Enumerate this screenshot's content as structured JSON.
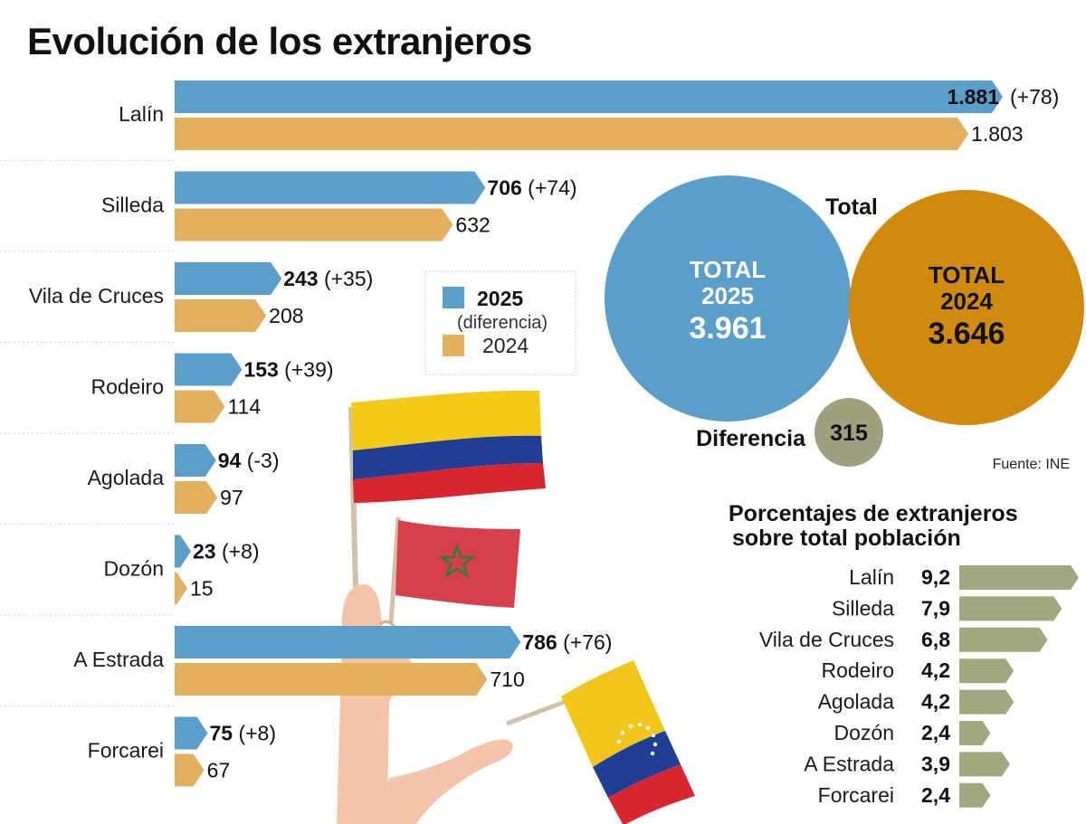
{
  "title": "Evolución de los extranjeros",
  "legend": {
    "series_2025": "2025",
    "series_2025_note": "(diferencia)",
    "series_2024": "2024"
  },
  "colors": {
    "blue_2025": "#5b9ec9",
    "orange_2024": "#e3b060",
    "circle_2024": "#d08a0e",
    "circle_diff": "#a0a07f",
    "pct_bar": "#a3a780"
  },
  "totals": {
    "heading": "Total",
    "total_2025_label_1": "TOTAL",
    "total_2025_label_2": "2025",
    "total_2025_value": "3.961",
    "total_2024_label_1": "TOTAL",
    "total_2024_label_2": "2024",
    "total_2024_value": "3.646",
    "difference_label": "Diferencia",
    "difference_value": "315"
  },
  "source": "Fuente: INE",
  "chart_data": [
    {
      "type": "bar",
      "title": "Evolución de los extranjeros",
      "categories": [
        "Lalín",
        "Silleda",
        "Vila de Cruces",
        "Rodeiro",
        "Agolada",
        "Dozón",
        "A Estrada",
        "Forcarei"
      ],
      "series": [
        {
          "name": "2025",
          "values": [
            1881,
            706,
            243,
            153,
            94,
            23,
            786,
            75
          ],
          "labels": [
            "1.881",
            "706",
            "243",
            "153",
            "94",
            "23",
            "786",
            "75"
          ],
          "diff_labels": [
            "(+78)",
            "(+74)",
            "(+35)",
            "(+39)",
            "(-3)",
            "(+8)",
            "(+76)",
            "(+8)"
          ]
        },
        {
          "name": "2024",
          "values": [
            1803,
            632,
            208,
            114,
            97,
            15,
            710,
            67
          ],
          "labels": [
            "1.803",
            "632",
            "208",
            "114",
            "97",
            "15",
            "710",
            "67"
          ]
        }
      ]
    },
    {
      "type": "bar",
      "title": "Porcentajes de extranjeros sobre total población",
      "title_line1": "Porcentajes de extranjeros",
      "title_line2": "sobre total población",
      "categories": [
        "Lalín",
        "Silleda",
        "Vila de Cruces",
        "Rodeiro",
        "Agolada",
        "Dozón",
        "A Estrada",
        "Forcarei"
      ],
      "values": [
        9.2,
        7.9,
        6.8,
        4.2,
        4.2,
        2.4,
        3.9,
        2.4
      ],
      "labels": [
        "9,2",
        "7,9",
        "6,8",
        "4,2",
        "4,2",
        "2,4",
        "3,9",
        "2,4"
      ]
    }
  ]
}
